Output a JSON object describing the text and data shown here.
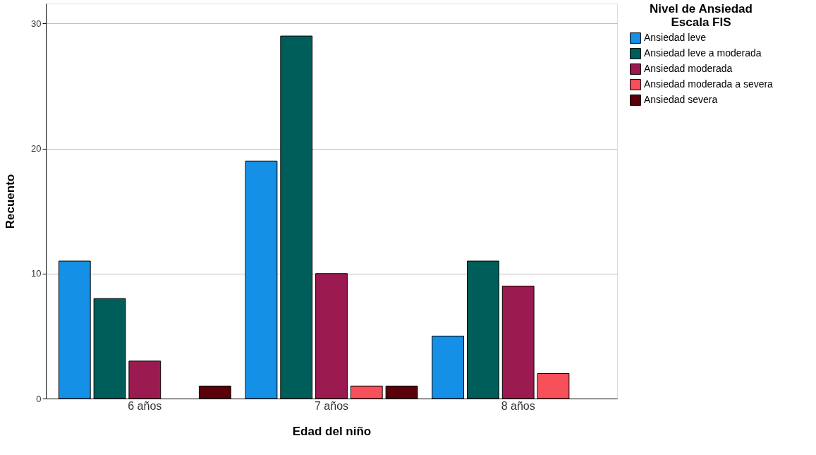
{
  "chart_data": {
    "type": "bar",
    "xlabel": "Edad del niño",
    "ylabel": "Recuento",
    "legend_title": "Nivel de Ansiedad Escala FIS",
    "categories": [
      "6 años",
      "7 años",
      "8 años"
    ],
    "series": [
      {
        "name": "Ansiedad leve",
        "color": "#1490e6",
        "values": [
          11,
          19,
          5
        ]
      },
      {
        "name": "Ansiedad leve a moderada",
        "color": "#005e5a",
        "values": [
          8,
          29,
          11
        ]
      },
      {
        "name": "Ansiedad moderada",
        "color": "#9b1a50",
        "values": [
          3,
          10,
          9
        ]
      },
      {
        "name": "Ansiedad moderada a severa",
        "color": "#f7505a",
        "values": [
          null,
          1,
          2
        ]
      },
      {
        "name": "Ansiedad severa",
        "color": "#5a0008",
        "values": [
          1,
          1,
          null
        ]
      }
    ],
    "ylim": [
      0,
      31.6
    ],
    "yticks": [
      0,
      10,
      20,
      30
    ],
    "grid": "y",
    "legend": "top right"
  }
}
